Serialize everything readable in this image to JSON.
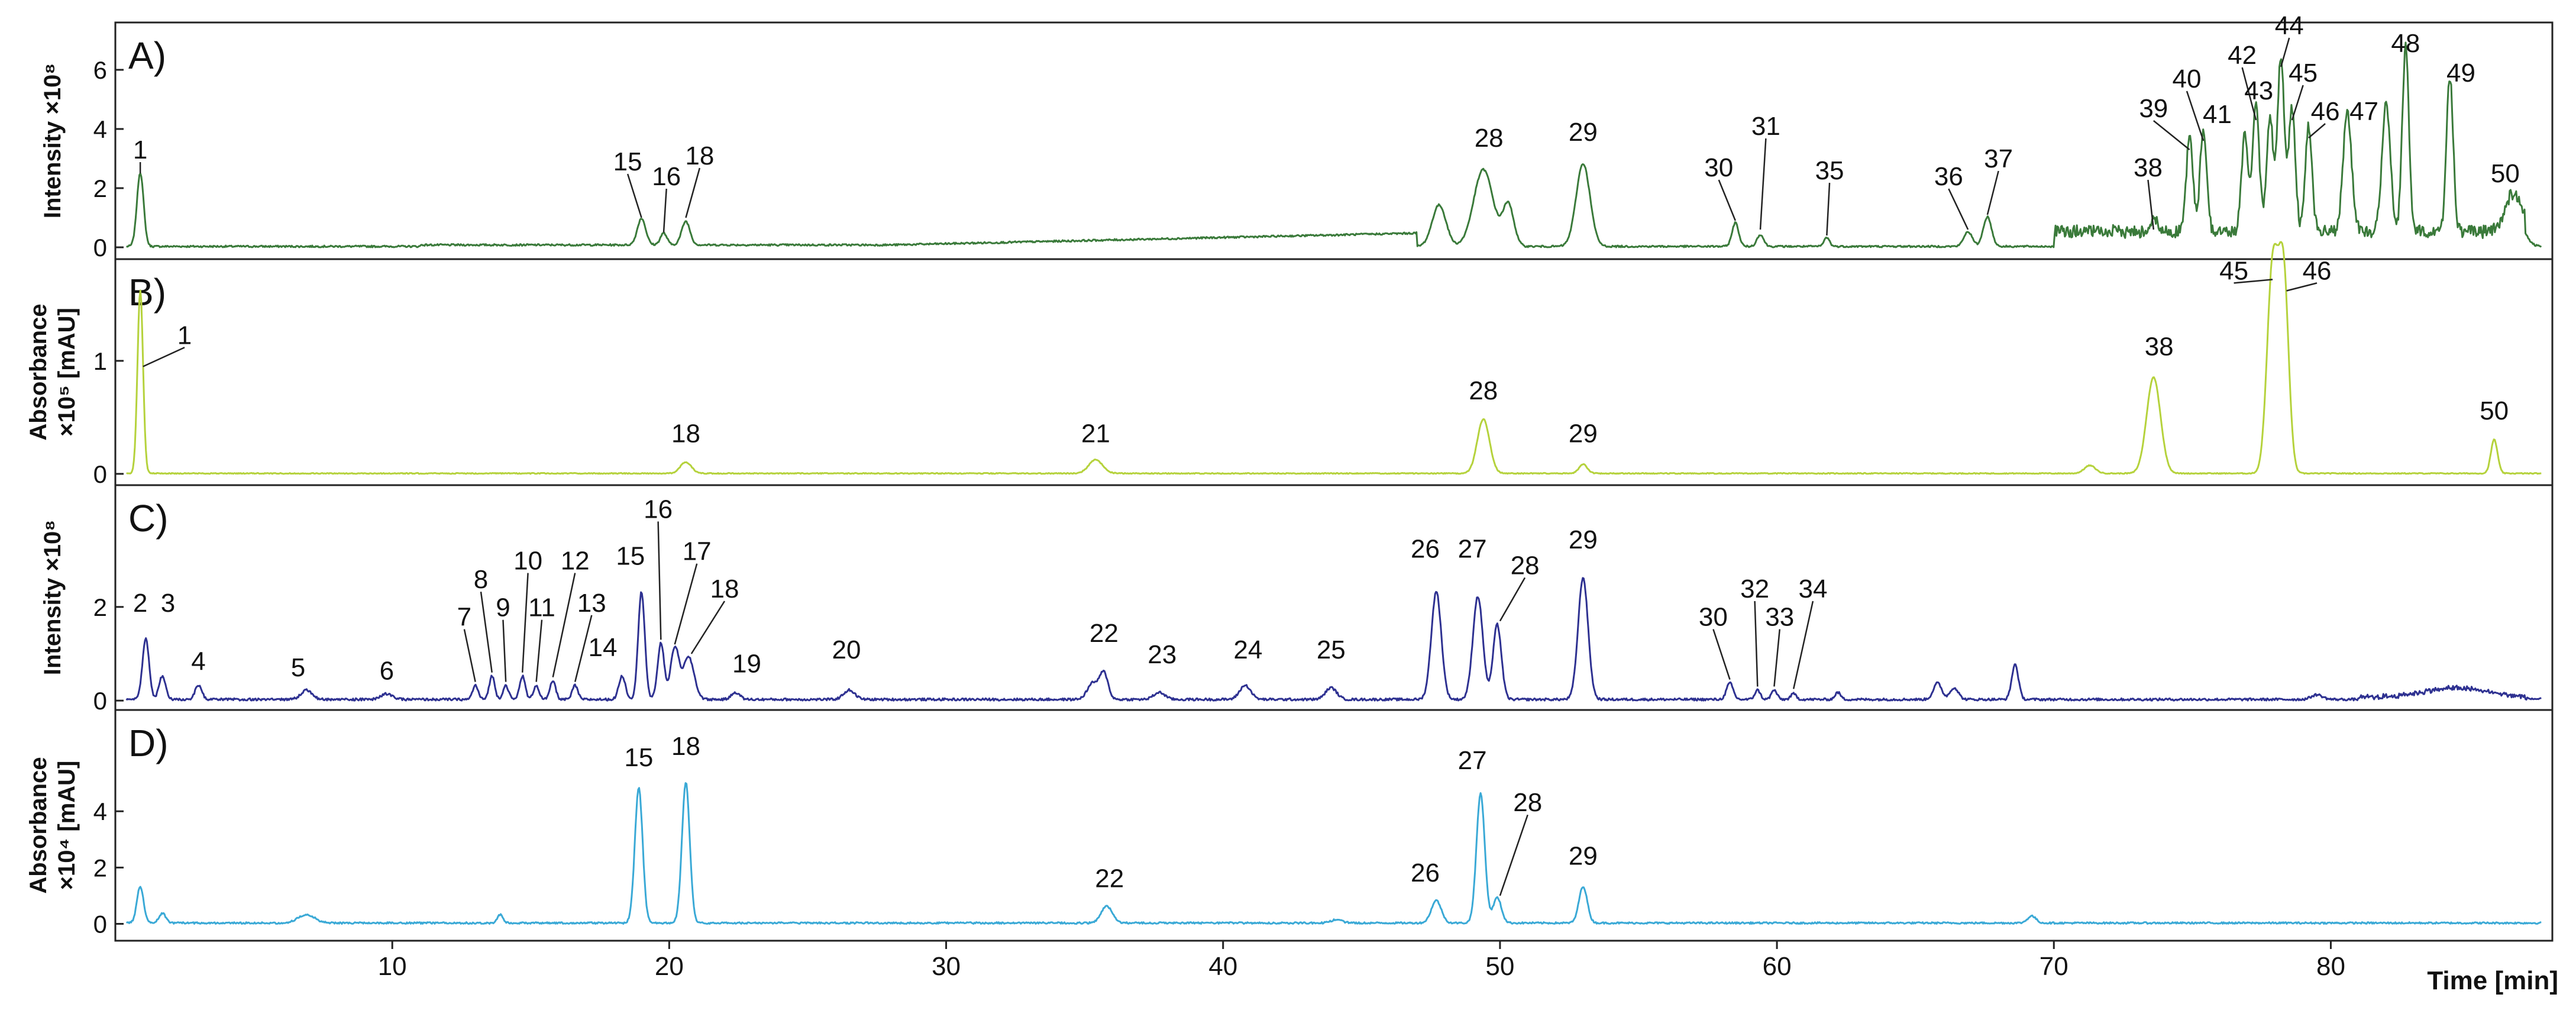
{
  "colors": {
    "A": "#3a7a3a",
    "B": "#b5d23c",
    "C": "#2e3191",
    "D": "#3aa9d6",
    "frame": "#222222",
    "text": "#111111"
  },
  "x_axis": {
    "label": "Time [min]",
    "min": 0,
    "max": 88,
    "ticks": [
      10,
      20,
      30,
      40,
      50,
      60,
      70,
      80
    ]
  },
  "chart_data": [
    {
      "panel": "A)",
      "type": "line",
      "ylabel": "Intensity ×10⁸",
      "yticks": [
        0,
        2,
        4,
        6
      ],
      "ylim": [
        -0.4,
        7.6
      ],
      "peaks": [
        {
          "label": "1",
          "t": 0.9,
          "h": 2.5,
          "w": 0.12
        },
        {
          "label": "15",
          "t": 19.0,
          "h": 0.9,
          "w": 0.15
        },
        {
          "label": "16",
          "t": 19.8,
          "h": 0.4,
          "w": 0.12
        },
        {
          "label": "18",
          "t": 20.6,
          "h": 0.8,
          "w": 0.15
        },
        {
          "label": "",
          "t": 47.8,
          "h": 1.4,
          "w": 0.25
        },
        {
          "label": "28",
          "t": 49.4,
          "h": 2.6,
          "w": 0.35
        },
        {
          "label": "",
          "t": 50.3,
          "h": 1.4,
          "w": 0.2
        },
        {
          "label": "29",
          "t": 53.0,
          "h": 2.8,
          "w": 0.25
        },
        {
          "label": "30",
          "t": 58.5,
          "h": 0.8,
          "w": 0.12
        },
        {
          "label": "31",
          "t": 59.4,
          "h": 0.4,
          "w": 0.12
        },
        {
          "label": "35",
          "t": 61.8,
          "h": 0.3,
          "w": 0.1
        },
        {
          "label": "36",
          "t": 66.9,
          "h": 0.5,
          "w": 0.15
        },
        {
          "label": "37",
          "t": 67.6,
          "h": 1.0,
          "w": 0.15
        },
        {
          "label": "38",
          "t": 73.6,
          "h": 0.5,
          "w": 0.12
        },
        {
          "label": "39",
          "t": 74.9,
          "h": 3.2,
          "w": 0.12
        },
        {
          "label": "40",
          "t": 75.4,
          "h": 3.5,
          "w": 0.12
        },
        {
          "label": "41",
          "t": 76.9,
          "h": 3.3,
          "w": 0.12
        },
        {
          "label": "42",
          "t": 77.3,
          "h": 4.2,
          "w": 0.12
        },
        {
          "label": "43",
          "t": 77.8,
          "h": 3.9,
          "w": 0.12
        },
        {
          "label": "44",
          "t": 78.2,
          "h": 6.0,
          "w": 0.12
        },
        {
          "label": "45",
          "t": 78.6,
          "h": 4.2,
          "w": 0.12
        },
        {
          "label": "46",
          "t": 79.2,
          "h": 3.6,
          "w": 0.12
        },
        {
          "label": "47",
          "t": 80.6,
          "h": 4.1,
          "w": 0.15
        },
        {
          "label": "",
          "t": 82.0,
          "h": 4.3,
          "w": 0.15
        },
        {
          "label": "48",
          "t": 82.7,
          "h": 6.2,
          "w": 0.12
        },
        {
          "label": "49",
          "t": 84.3,
          "h": 5.3,
          "w": 0.12
        },
        {
          "label": "50",
          "t": 86.6,
          "h": 1.3,
          "w": 0.3
        }
      ],
      "labels": [
        {
          "text": "1",
          "t": 0.9,
          "v": 3.0,
          "lt": 0.9,
          "lv": 2.5
        },
        {
          "text": "15",
          "t": 18.5,
          "v": 2.6,
          "lt": 19.0,
          "lv": 1.0
        },
        {
          "text": "16",
          "t": 19.9,
          "v": 2.1,
          "lt": 19.8,
          "lv": 0.5
        },
        {
          "text": "18",
          "t": 21.1,
          "v": 2.8,
          "lt": 20.6,
          "lv": 1.0
        },
        {
          "text": "28",
          "t": 49.6,
          "v": 3.4,
          "lt": null,
          "lv": null
        },
        {
          "text": "29",
          "t": 53.0,
          "v": 3.6,
          "lt": null,
          "lv": null
        },
        {
          "text": "30",
          "t": 57.9,
          "v": 2.4,
          "lt": 58.5,
          "lv": 0.9
        },
        {
          "text": "31",
          "t": 59.6,
          "v": 3.8,
          "lt": 59.4,
          "lv": 0.6
        },
        {
          "text": "35",
          "t": 61.9,
          "v": 2.3,
          "lt": 61.8,
          "lv": 0.4
        },
        {
          "text": "36",
          "t": 66.2,
          "v": 2.1,
          "lt": 66.9,
          "lv": 0.6
        },
        {
          "text": "37",
          "t": 68.0,
          "v": 2.7,
          "lt": 67.6,
          "lv": 1.1
        },
        {
          "text": "38",
          "t": 73.4,
          "v": 2.4,
          "lt": 73.6,
          "lv": 0.6
        },
        {
          "text": "39",
          "t": 73.6,
          "v": 4.4,
          "lt": 74.9,
          "lv": 3.3
        },
        {
          "text": "40",
          "t": 74.8,
          "v": 5.4,
          "lt": 75.4,
          "lv": 3.6
        },
        {
          "text": "41",
          "t": 75.9,
          "v": 4.2,
          "lt": null,
          "lv": null
        },
        {
          "text": "42",
          "t": 76.8,
          "v": 6.2,
          "lt": 77.3,
          "lv": 4.3
        },
        {
          "text": "43",
          "t": 77.4,
          "v": 5.0,
          "lt": null,
          "lv": null
        },
        {
          "text": "44",
          "t": 78.5,
          "v": 7.2,
          "lt": 78.2,
          "lv": 6.1
        },
        {
          "text": "45",
          "t": 79.0,
          "v": 5.6,
          "lt": 78.6,
          "lv": 4.3
        },
        {
          "text": "46",
          "t": 79.8,
          "v": 4.3,
          "lt": 79.2,
          "lv": 3.7
        },
        {
          "text": "47",
          "t": 81.2,
          "v": 4.3,
          "lt": null,
          "lv": null
        },
        {
          "text": "48",
          "t": 82.7,
          "v": 6.6,
          "lt": null,
          "lv": null
        },
        {
          "text": "49",
          "t": 84.7,
          "v": 5.6,
          "lt": null,
          "lv": null
        },
        {
          "text": "50",
          "t": 86.3,
          "v": 2.2,
          "lt": null,
          "lv": null
        }
      ]
    },
    {
      "panel": "B)",
      "type": "line",
      "ylabel": "Absorbance ×10⁵ [mAU]",
      "yticks": [
        0,
        1
      ],
      "ylim": [
        -0.1,
        1.9
      ],
      "peaks": [
        {
          "label": "1",
          "t": 0.9,
          "h": 1.62,
          "w": 0.1
        },
        {
          "label": "18",
          "t": 20.6,
          "h": 0.1,
          "w": 0.2
        },
        {
          "label": "21",
          "t": 35.4,
          "h": 0.12,
          "w": 0.25
        },
        {
          "label": "28",
          "t": 49.4,
          "h": 0.48,
          "w": 0.22
        },
        {
          "label": "29",
          "t": 53.0,
          "h": 0.08,
          "w": 0.15
        },
        {
          "label": "",
          "t": 71.3,
          "h": 0.07,
          "w": 0.2
        },
        {
          "label": "38",
          "t": 73.6,
          "h": 0.85,
          "w": 0.25
        },
        {
          "label": "45",
          "t": 77.9,
          "h": 1.82,
          "w": 0.2
        },
        {
          "label": "46",
          "t": 78.3,
          "h": 1.7,
          "w": 0.18
        },
        {
          "label": "50",
          "t": 85.9,
          "h": 0.3,
          "w": 0.12
        }
      ],
      "labels": [
        {
          "text": "1",
          "t": 2.5,
          "v": 1.15,
          "lt": 1.0,
          "lv": 0.95
        },
        {
          "text": "18",
          "t": 20.6,
          "v": 0.28,
          "lt": null,
          "lv": null
        },
        {
          "text": "21",
          "t": 35.4,
          "v": 0.28,
          "lt": null,
          "lv": null
        },
        {
          "text": "28",
          "t": 49.4,
          "v": 0.66,
          "lt": null,
          "lv": null
        },
        {
          "text": "29",
          "t": 53.0,
          "v": 0.28,
          "lt": null,
          "lv": null
        },
        {
          "text": "38",
          "t": 73.8,
          "v": 1.05,
          "lt": null,
          "lv": null
        },
        {
          "text": "45",
          "t": 76.5,
          "v": 1.72,
          "lt": 77.9,
          "lv": 1.72
        },
        {
          "text": "46",
          "t": 79.5,
          "v": 1.72,
          "lt": 78.4,
          "lv": 1.62
        },
        {
          "text": "50",
          "t": 85.9,
          "v": 0.48,
          "lt": null,
          "lv": null
        }
      ]
    },
    {
      "panel": "C)",
      "type": "line",
      "ylabel": "Intensity ×10⁸",
      "yticks": [
        0,
        2
      ],
      "ylim": [
        -0.2,
        4.6
      ],
      "peaks": [
        {
          "label": "2",
          "t": 1.1,
          "h": 1.3,
          "w": 0.12
        },
        {
          "label": "3",
          "t": 1.7,
          "h": 0.5,
          "w": 0.12
        },
        {
          "label": "4",
          "t": 3.0,
          "h": 0.3,
          "w": 0.12
        },
        {
          "label": "5",
          "t": 6.9,
          "h": 0.2,
          "w": 0.2
        },
        {
          "label": "6",
          "t": 9.8,
          "h": 0.12,
          "w": 0.2
        },
        {
          "label": "7",
          "t": 13.0,
          "h": 0.3,
          "w": 0.1
        },
        {
          "label": "8",
          "t": 13.6,
          "h": 0.5,
          "w": 0.1
        },
        {
          "label": "9",
          "t": 14.1,
          "h": 0.3,
          "w": 0.1
        },
        {
          "label": "10",
          "t": 14.7,
          "h": 0.5,
          "w": 0.1
        },
        {
          "label": "11",
          "t": 15.2,
          "h": 0.3,
          "w": 0.1
        },
        {
          "label": "12",
          "t": 15.8,
          "h": 0.4,
          "w": 0.1
        },
        {
          "label": "13",
          "t": 16.6,
          "h": 0.3,
          "w": 0.1
        },
        {
          "label": "14",
          "t": 18.3,
          "h": 0.5,
          "w": 0.12
        },
        {
          "label": "15",
          "t": 19.0,
          "h": 2.3,
          "w": 0.12
        },
        {
          "label": "16",
          "t": 19.7,
          "h": 1.2,
          "w": 0.12
        },
        {
          "label": "17",
          "t": 20.2,
          "h": 1.1,
          "w": 0.15
        },
        {
          "label": "18",
          "t": 20.7,
          "h": 0.9,
          "w": 0.2
        },
        {
          "label": "19",
          "t": 22.4,
          "h": 0.15,
          "w": 0.15
        },
        {
          "label": "20",
          "t": 26.5,
          "h": 0.2,
          "w": 0.2
        },
        {
          "label": "",
          "t": 35.3,
          "h": 0.35,
          "w": 0.2
        },
        {
          "label": "22",
          "t": 35.7,
          "h": 0.55,
          "w": 0.15
        },
        {
          "label": "23",
          "t": 37.7,
          "h": 0.15,
          "w": 0.2
        },
        {
          "label": "24",
          "t": 40.8,
          "h": 0.3,
          "w": 0.2
        },
        {
          "label": "25",
          "t": 43.9,
          "h": 0.25,
          "w": 0.2
        },
        {
          "label": "26",
          "t": 47.7,
          "h": 2.3,
          "w": 0.18
        },
        {
          "label": "27",
          "t": 49.2,
          "h": 2.2,
          "w": 0.18
        },
        {
          "label": "28",
          "t": 49.9,
          "h": 1.6,
          "w": 0.15
        },
        {
          "label": "29",
          "t": 53.0,
          "h": 2.6,
          "w": 0.18
        },
        {
          "label": "30",
          "t": 58.3,
          "h": 0.35,
          "w": 0.12
        },
        {
          "label": "32",
          "t": 59.3,
          "h": 0.2,
          "w": 0.1
        },
        {
          "label": "33",
          "t": 59.9,
          "h": 0.2,
          "w": 0.1
        },
        {
          "label": "34",
          "t": 60.6,
          "h": 0.12,
          "w": 0.1
        },
        {
          "label": "",
          "t": 62.2,
          "h": 0.15,
          "w": 0.1
        },
        {
          "label": "",
          "t": 65.8,
          "h": 0.35,
          "w": 0.15
        },
        {
          "label": "",
          "t": 66.4,
          "h": 0.25,
          "w": 0.15
        },
        {
          "label": "",
          "t": 68.6,
          "h": 0.75,
          "w": 0.12
        },
        {
          "label": "",
          "t": 79.5,
          "h": 0.1,
          "w": 0.2
        },
        {
          "label": "",
          "t": 84.5,
          "h": 0.2,
          "w": 1.2
        }
      ],
      "labels": [
        {
          "text": "2",
          "t": 0.9,
          "v": 1.9,
          "lt": null,
          "lv": null
        },
        {
          "text": "3",
          "t": 1.9,
          "v": 1.9,
          "lt": null,
          "lv": null
        },
        {
          "text": "4",
          "t": 3.0,
          "v": 0.65,
          "lt": null,
          "lv": null
        },
        {
          "text": "5",
          "t": 6.6,
          "v": 0.52,
          "lt": null,
          "lv": null
        },
        {
          "text": "6",
          "t": 9.8,
          "v": 0.45,
          "lt": null,
          "lv": null
        },
        {
          "text": "7",
          "t": 12.6,
          "v": 1.6,
          "lt": 13.0,
          "lv": 0.4
        },
        {
          "text": "8",
          "t": 13.2,
          "v": 2.4,
          "lt": 13.6,
          "lv": 0.6
        },
        {
          "text": "9",
          "t": 14.0,
          "v": 1.8,
          "lt": 14.1,
          "lv": 0.4
        },
        {
          "text": "10",
          "t": 14.9,
          "v": 2.8,
          "lt": 14.7,
          "lv": 0.6
        },
        {
          "text": "11",
          "t": 15.4,
          "v": 1.8,
          "lt": 15.2,
          "lv": 0.4
        },
        {
          "text": "12",
          "t": 16.6,
          "v": 2.8,
          "lt": 15.8,
          "lv": 0.5
        },
        {
          "text": "13",
          "t": 17.2,
          "v": 1.9,
          "lt": 16.6,
          "lv": 0.4
        },
        {
          "text": "14",
          "t": 17.6,
          "v": 0.95,
          "lt": null,
          "lv": null
        },
        {
          "text": "15",
          "t": 18.6,
          "v": 2.9,
          "lt": null,
          "lv": null
        },
        {
          "text": "16",
          "t": 19.6,
          "v": 3.9,
          "lt": 19.7,
          "lv": 1.3
        },
        {
          "text": "17",
          "t": 21.0,
          "v": 3.0,
          "lt": 20.2,
          "lv": 1.2
        },
        {
          "text": "18",
          "t": 22.0,
          "v": 2.2,
          "lt": 20.8,
          "lv": 1.0
        },
        {
          "text": "19",
          "t": 22.8,
          "v": 0.6,
          "lt": null,
          "lv": null
        },
        {
          "text": "20",
          "t": 26.4,
          "v": 0.9,
          "lt": null,
          "lv": null
        },
        {
          "text": "22",
          "t": 35.7,
          "v": 1.25,
          "lt": null,
          "lv": null
        },
        {
          "text": "23",
          "t": 37.8,
          "v": 0.8,
          "lt": null,
          "lv": null
        },
        {
          "text": "24",
          "t": 40.9,
          "v": 0.9,
          "lt": null,
          "lv": null
        },
        {
          "text": "25",
          "t": 43.9,
          "v": 0.9,
          "lt": null,
          "lv": null
        },
        {
          "text": "26",
          "t": 47.3,
          "v": 3.05,
          "lt": null,
          "lv": null
        },
        {
          "text": "27",
          "t": 49.0,
          "v": 3.05,
          "lt": null,
          "lv": null
        },
        {
          "text": "28",
          "t": 50.9,
          "v": 2.7,
          "lt": 50.0,
          "lv": 1.7
        },
        {
          "text": "29",
          "t": 53.0,
          "v": 3.25,
          "lt": null,
          "lv": null
        },
        {
          "text": "30",
          "t": 57.7,
          "v": 1.6,
          "lt": 58.3,
          "lv": 0.45
        },
        {
          "text": "32",
          "t": 59.2,
          "v": 2.2,
          "lt": 59.3,
          "lv": 0.3
        },
        {
          "text": "33",
          "t": 60.1,
          "v": 1.6,
          "lt": 59.9,
          "lv": 0.3
        },
        {
          "text": "34",
          "t": 61.3,
          "v": 2.2,
          "lt": 60.6,
          "lv": 0.25
        }
      ]
    },
    {
      "panel": "D)",
      "type": "line",
      "ylabel": "Absorbance ×10⁴ [mAU]",
      "yticks": [
        0,
        2,
        4
      ],
      "ylim": [
        -0.6,
        7.6
      ],
      "peaks": [
        {
          "label": "",
          "t": 0.9,
          "h": 1.3,
          "w": 0.12
        },
        {
          "label": "",
          "t": 1.7,
          "h": 0.35,
          "w": 0.12
        },
        {
          "label": "",
          "t": 6.9,
          "h": 0.3,
          "w": 0.3
        },
        {
          "label": "",
          "t": 13.9,
          "h": 0.3,
          "w": 0.1
        },
        {
          "label": "15",
          "t": 18.9,
          "h": 4.8,
          "w": 0.14
        },
        {
          "label": "18",
          "t": 20.6,
          "h": 5.0,
          "w": 0.14
        },
        {
          "label": "22",
          "t": 35.8,
          "h": 0.6,
          "w": 0.2
        },
        {
          "label": "",
          "t": 44.1,
          "h": 0.12,
          "w": 0.2
        },
        {
          "label": "26",
          "t": 47.7,
          "h": 0.8,
          "w": 0.18
        },
        {
          "label": "27",
          "t": 49.3,
          "h": 4.6,
          "w": 0.15
        },
        {
          "label": "28",
          "t": 49.9,
          "h": 0.9,
          "w": 0.15
        },
        {
          "label": "29",
          "t": 53.0,
          "h": 1.3,
          "w": 0.15
        },
        {
          "label": "",
          "t": 69.2,
          "h": 0.25,
          "w": 0.15
        }
      ],
      "labels": [
        {
          "text": "15",
          "t": 18.9,
          "v": 5.6,
          "lt": null,
          "lv": null
        },
        {
          "text": "18",
          "t": 20.6,
          "v": 6.0,
          "lt": null,
          "lv": null
        },
        {
          "text": "22",
          "t": 35.9,
          "v": 1.3,
          "lt": null,
          "lv": null
        },
        {
          "text": "26",
          "t": 47.3,
          "v": 1.5,
          "lt": null,
          "lv": null
        },
        {
          "text": "27",
          "t": 49.0,
          "v": 5.5,
          "lt": null,
          "lv": null
        },
        {
          "text": "28",
          "t": 51.0,
          "v": 4.0,
          "lt": 50.0,
          "lv": 1.0
        },
        {
          "text": "29",
          "t": 53.0,
          "v": 2.1,
          "lt": null,
          "lv": null
        }
      ]
    }
  ]
}
